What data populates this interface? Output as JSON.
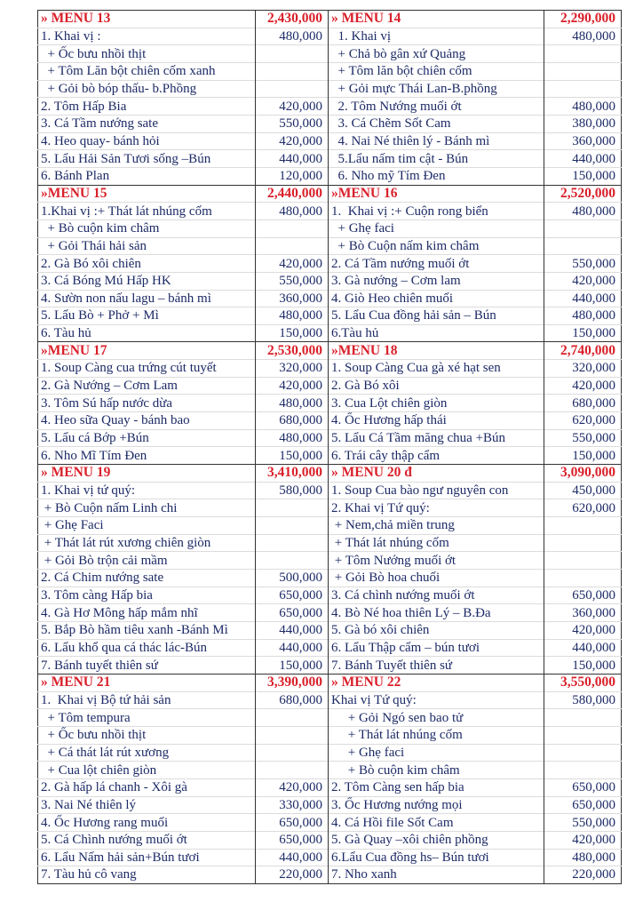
{
  "colors": {
    "header": "#d9202a",
    "text": "#1c2a66"
  },
  "blocks": [
    {
      "left": {
        "title": "» MENU 13",
        "total": "2,430,000",
        "items": [
          {
            "name": "1. Khai vị :",
            "price": "480,000"
          },
          {
            "name": "  + Ốc bưu nhồi thịt",
            "price": ""
          },
          {
            "name": "  + Tôm Lăn bột chiên cốm xanh",
            "price": ""
          },
          {
            "name": "  + Gỏi bò bóp thấu- b.Phồng",
            "price": ""
          },
          {
            "name": "2. Tôm Hấp Bia",
            "price": "420,000"
          },
          {
            "name": "3. Cá Tầm nướng sate",
            "price": "550,000"
          },
          {
            "name": "4. Heo quay- bánh hỏi",
            "price": "420,000"
          },
          {
            "name": "5. Lẩu Hải Sản Tươi sống –Bún",
            "price": "440,000"
          },
          {
            "name": "6. Bánh Plan",
            "price": "120,000"
          }
        ]
      },
      "right": {
        "title": "» MENU 14",
        "total": "2,290,000",
        "items": [
          {
            "name": "  1. Khai vị",
            "price": "480,000"
          },
          {
            "name": "  + Chả bò gân xứ Quảng",
            "price": ""
          },
          {
            "name": "  + Tôm lăn bột chiên cốm",
            "price": ""
          },
          {
            "name": "  + Gỏi mực Thái Lan-B.phồng",
            "price": ""
          },
          {
            "name": "  2. Tôm Nướng muối ớt",
            "price": "480,000"
          },
          {
            "name": "  3. Cá Chẽm Sốt Cam",
            "price": "380,000"
          },
          {
            "name": "  4. Nai Né thiên lý - Bánh mì",
            "price": "360,000"
          },
          {
            "name": "  5.Lẩu nấm tim cật - Bún",
            "price": "440,000"
          },
          {
            "name": "  6. Nho mỹ Tím Đen",
            "price": "150,000"
          }
        ]
      }
    },
    {
      "left": {
        "title": "»MENU 15",
        "total": "2,440,000",
        "items": [
          {
            "name": "1.Khai vị :+ Thát lát nhúng cốm",
            "price": "480,000"
          },
          {
            "name": "  + Bò cuộn kim châm",
            "price": ""
          },
          {
            "name": "  + Gỏi Thái hải sản",
            "price": ""
          },
          {
            "name": "2. Gà Bó xôi chiên",
            "price": "420,000"
          },
          {
            "name": "3. Cá Bóng Mú Hấp HK",
            "price": "550,000"
          },
          {
            "name": "4. Sườn non nấu lagu – bánh mì",
            "price": "360,000"
          },
          {
            "name": "5. Lẩu Bò + Phở + Mì",
            "price": "480,000"
          },
          {
            "name": "6. Tàu hủ",
            "price": "150,000"
          }
        ]
      },
      "right": {
        "title": "»MENU 16",
        "total": "2,520,000",
        "items": [
          {
            "name": "1.  Khai vị :+ Cuộn rong biển",
            "price": "480,000"
          },
          {
            "name": "  + Ghẹ faci",
            "price": ""
          },
          {
            "name": "  + Bò Cuộn nấm kim châm",
            "price": ""
          },
          {
            "name": "2. Cá Tầm nướng muối ớt",
            "price": "550,000"
          },
          {
            "name": "3. Gà nướng – Cơm lam",
            "price": "420,000"
          },
          {
            "name": "4. Giò Heo chiên muối",
            "price": "440,000"
          },
          {
            "name": "5. Lẩu Cua đồng hải sản – Bún",
            "price": "480,000"
          },
          {
            "name": "6.Tàu hủ",
            "price": "150,000"
          }
        ]
      }
    },
    {
      "left": {
        "title": "»MENU 17",
        "total": "2,530,000",
        "items": [
          {
            "name": "1. Soup Càng cua trứng cút tuyết",
            "price": "320,000"
          },
          {
            "name": "2. Gà Nướng – Cơm Lam",
            "price": "420,000"
          },
          {
            "name": "3. Tôm Sú hấp nước dừa",
            "price": "480,000"
          },
          {
            "name": "4. Heo sữa Quay - bánh bao",
            "price": "680,000"
          },
          {
            "name": "5. Lẩu cá Bớp +Bún",
            "price": "480,000"
          },
          {
            "name": "6. Nho Mĩ Tím Đen",
            "price": "150,000"
          }
        ]
      },
      "right": {
        "title": "»MENU 18",
        "total": "2,740,000",
        "items": [
          {
            "name": "1. Soup Càng Cua gà xé hạt sen",
            "price": "320,000"
          },
          {
            "name": "2. Gà Bó xôi",
            "price": "420,000"
          },
          {
            "name": "3. Cua Lột chiên giòn",
            "price": "680,000"
          },
          {
            "name": "4. Ốc Hương hấp thái",
            "price": "620,000"
          },
          {
            "name": "5. Lẩu Cá Tầm măng chua +Bún",
            "price": "550,000"
          },
          {
            "name": "6. Trái cây thập cẩm",
            "price": "150,000"
          }
        ]
      }
    },
    {
      "left": {
        "title": "» MENU 19",
        "total": "3,410,000",
        "items": [
          {
            "name": "1. Khai vị tứ quý:",
            "price": "580,000"
          },
          {
            "name": " + Bò Cuộn nấm Linh chi",
            "price": ""
          },
          {
            "name": " + Ghẹ Faci",
            "price": ""
          },
          {
            "name": " + Thát lát rút xương chiên giòn",
            "price": ""
          },
          {
            "name": " + Gỏi Bò trộn cải mầm",
            "price": ""
          },
          {
            "name": "2. Cá Chim nướng sate",
            "price": "500,000"
          },
          {
            "name": "3. Tôm càng Hấp bia",
            "price": "650,000"
          },
          {
            "name": "4. Gà Hơ Mông hấp mắm nhĩ",
            "price": "650,000"
          },
          {
            "name": "5. Bắp Bò hầm tiêu xanh -Bánh Mì",
            "price": "440,000"
          },
          {
            "name": "6. Lẩu khổ qua cá thác lác-Bún",
            "price": "440,000"
          },
          {
            "name": "7. Bánh tuyết thiên sứ",
            "price": "150,000"
          }
        ]
      },
      "right": {
        "title": "» MENU 20 đ",
        "total": "3,090,000",
        "items": [
          {
            "name": "1. Soup Cua bào ngư nguyên con",
            "price": "450,000"
          },
          {
            "name": "2. Khai vị Tứ quý:",
            "price": "620,000"
          },
          {
            "name": " + Nem,chả miền trung",
            "price": ""
          },
          {
            "name": " + Thát lát nhúng cốm",
            "price": ""
          },
          {
            "name": " + Tôm Nướng muối ớt",
            "price": ""
          },
          {
            "name": " + Gỏi Bò hoa chuối",
            "price": ""
          },
          {
            "name": "3. Cá chình nướng muối ớt",
            "price": "650,000"
          },
          {
            "name": "4. Bò Né hoa thiên Lý – B.Đa",
            "price": "360,000"
          },
          {
            "name": "5. Gà bó xôi chiên",
            "price": "420,000"
          },
          {
            "name": "6. Lẩu Thập cẩm – bún tươi",
            "price": "440,000"
          },
          {
            "name": "7. Bánh Tuyết thiên sứ",
            "price": "150,000"
          }
        ]
      }
    },
    {
      "left": {
        "title": "» MENU 21",
        "total": "3,390,000",
        "items": [
          {
            "name": "1.  Khai vị Bộ tứ hải sản",
            "price": "680,000"
          },
          {
            "name": "  + Tôm tempura",
            "price": ""
          },
          {
            "name": "  + Ốc bưu nhồi thịt",
            "price": ""
          },
          {
            "name": "  + Cá thát lát rút xương",
            "price": ""
          },
          {
            "name": "  + Cua lột chiên giòn",
            "price": ""
          },
          {
            "name": "2. Gà hấp lá chanh - Xôi gà",
            "price": "420,000"
          },
          {
            "name": "3. Nai Né thiên lý",
            "price": "330,000"
          },
          {
            "name": "4. Ốc Hương rang muối",
            "price": "650,000"
          },
          {
            "name": "5. Cá Chình nướng muối ớt",
            "price": "650,000"
          },
          {
            "name": "6. Lẩu Nấm hải sản+Bún tươi",
            "price": "440,000"
          },
          {
            "name": "7. Tàu hủ cô vang",
            "price": "220,000"
          }
        ]
      },
      "right": {
        "title": "» MENU 22",
        "total": "3,550,000",
        "items": [
          {
            "name": "Khai vị Tứ quý:",
            "price": "580,000"
          },
          {
            "name": "     + Gỏi Ngó sen bao tử",
            "price": ""
          },
          {
            "name": "     + Thát lát nhúng cốm",
            "price": ""
          },
          {
            "name": "     + Ghẹ faci",
            "price": ""
          },
          {
            "name": "     + Bò cuộn kim châm",
            "price": ""
          },
          {
            "name": "2. Tôm Càng sen hấp bia",
            "price": "650,000"
          },
          {
            "name": "3. Ốc Hương nướng mọi",
            "price": "650,000"
          },
          {
            "name": "4. Cá Hồi file Sốt Cam",
            "price": "550,000"
          },
          {
            "name": "5. Gà Quay –xôi chiên phồng",
            "price": "420,000"
          },
          {
            "name": "6.Lẩu Cua đồng hs– Bún tươi",
            "price": "480,000"
          },
          {
            "name": "7. Nho xanh",
            "price": "220,000"
          }
        ]
      }
    }
  ]
}
